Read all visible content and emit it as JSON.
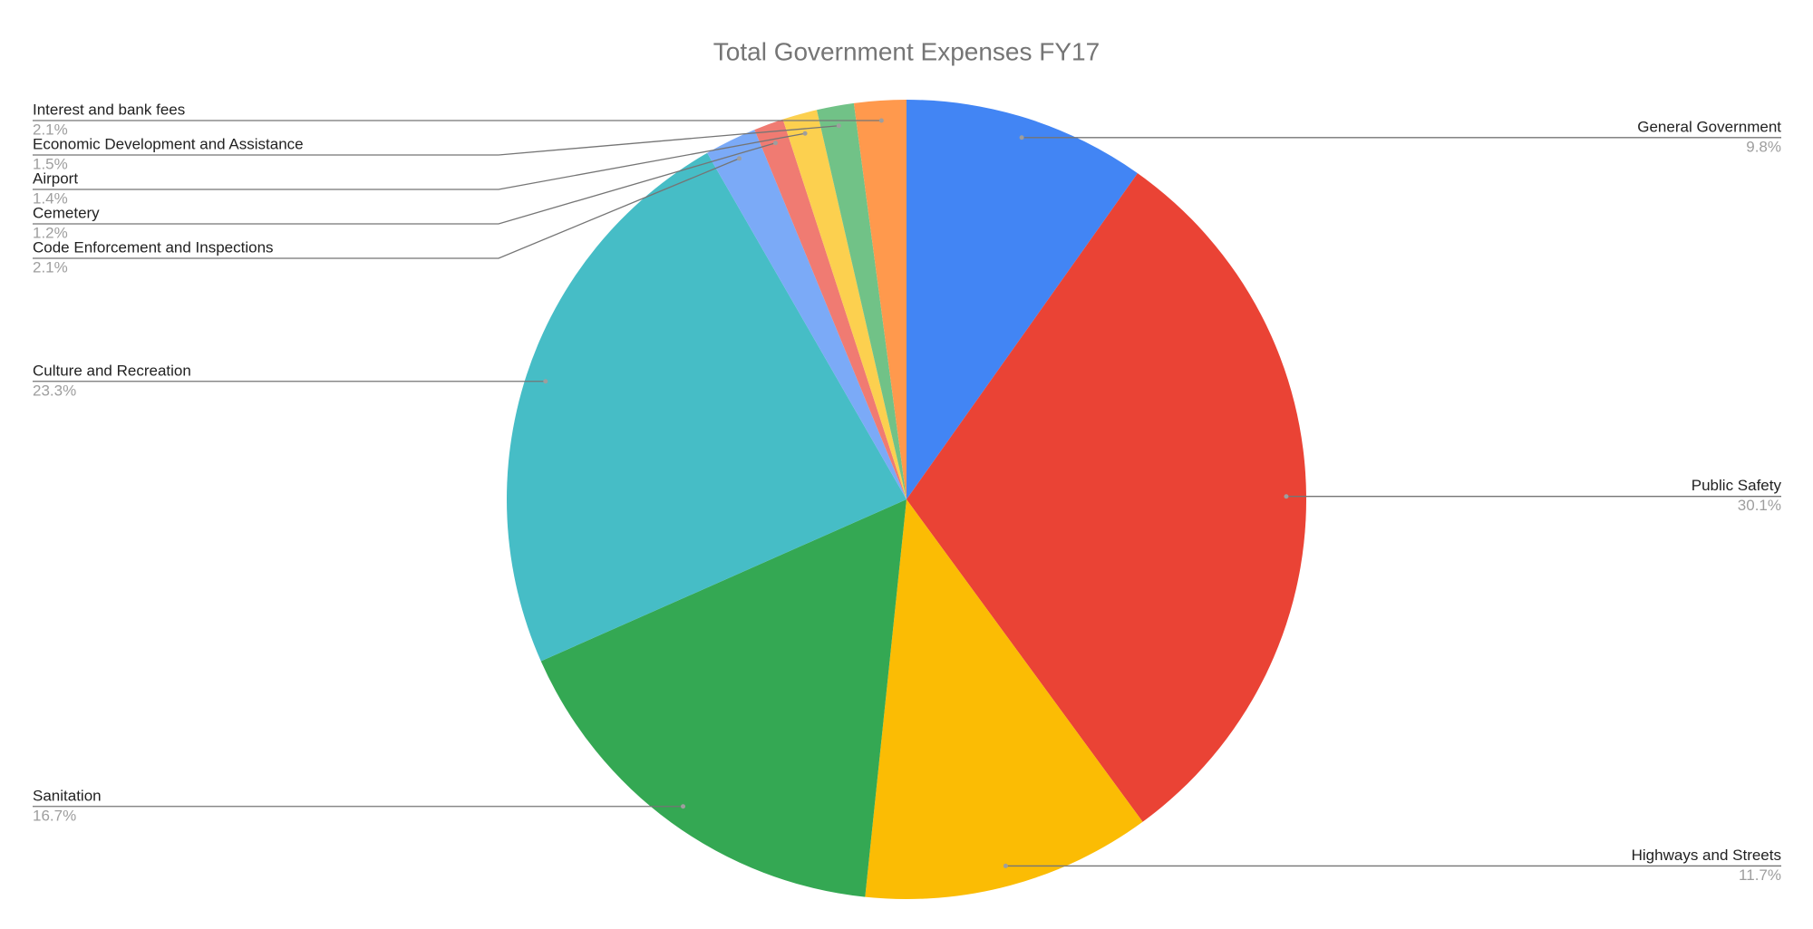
{
  "chart_data": {
    "type": "pie",
    "title": "Total Government Expenses FY17",
    "categories": [
      "General Government",
      "Public Safety",
      "Highways and Streets",
      "Sanitation",
      "Culture and Recreation",
      "Code Enforcement and Inspections",
      "Cemetery",
      "Airport",
      "Economic Development and Assistance",
      "Interest and bank fees"
    ],
    "values": [
      9.8,
      30.1,
      11.7,
      16.7,
      23.3,
      2.1,
      1.2,
      1.4,
      1.5,
      2.1
    ],
    "value_labels": [
      "9.8%",
      "30.1%",
      "11.7%",
      "16.7%",
      "23.3%",
      "2.1%",
      "1.2%",
      "1.4%",
      "1.5%",
      "2.1%"
    ],
    "colors": [
      "#4285f4",
      "#ea4335",
      "#fbbc04",
      "#34a853",
      "#46bdc6",
      "#7baaf7",
      "#f07b72",
      "#fcd04f",
      "#71c287",
      "#ff994d"
    ]
  }
}
